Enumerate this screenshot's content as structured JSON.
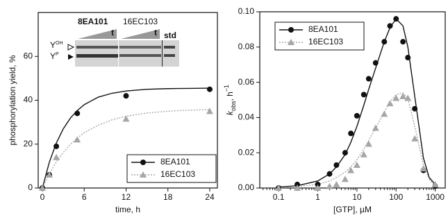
{
  "chart_data": [
    {
      "type": "scatter",
      "xlabel": "time, h",
      "ylabel": "phosphorylation yield, %",
      "xlim": [
        -0.6,
        25.1
      ],
      "xticks": [
        0,
        6,
        12,
        18,
        24
      ],
      "ylim": [
        0,
        80
      ],
      "yticks": [
        0,
        20,
        40,
        60
      ],
      "legend": "lower right",
      "x": [
        0,
        1,
        2,
        5,
        12,
        24
      ],
      "series": [
        {
          "name": "8EA101",
          "color": "#111111",
          "marker": "circle",
          "linestyle": "solid",
          "values": [
            0,
            6,
            19,
            34,
            42,
            45
          ],
          "fit": {
            "x": [
              0,
              1,
              2,
              3,
              4,
              5,
              6,
              8,
              10,
              12,
              15,
              18,
              21,
              24
            ],
            "y": [
              0,
              11.8,
              20.5,
              27.0,
              31.8,
              35.3,
              38.0,
              41.4,
              43.2,
              44.2,
              45.0,
              45.3,
              45.4,
              45.5
            ]
          }
        },
        {
          "name": "16EC103",
          "color": "#a6a6a6",
          "marker": "triangle",
          "linestyle": "dotted",
          "values": [
            0,
            6,
            14,
            22,
            31.5,
            35
          ],
          "fit": {
            "x": [
              0,
              1,
              2,
              3,
              4,
              5,
              6,
              8,
              10,
              12,
              15,
              18,
              21,
              24
            ],
            "y": [
              0,
              6.5,
              11.9,
              16.2,
              19.8,
              22.8,
              25.2,
              28.6,
              31.1,
              32.7,
              34.2,
              35.0,
              35.5,
              35.7
            ]
          }
        }
      ],
      "inset": {
        "label_1": "8EA101",
        "label_2": "16EC103",
        "t_1": "t",
        "t_2": "t",
        "std": "std",
        "band_1": {
          "main": "Y",
          "sup": "OH"
        },
        "band_2": {
          "main": "Y",
          "sup": "P"
        }
      }
    },
    {
      "type": "scatter",
      "xscale": "log",
      "xlabel": "[GTP], µM",
      "ylabel": {
        "main": "k",
        "sub": "obs",
        "rest": ", h",
        "sup": "−1"
      },
      "xlim": [
        0.033,
        1800
      ],
      "xticks": [
        0.1,
        1,
        10,
        100,
        1000
      ],
      "ylim": [
        0,
        0.1
      ],
      "yticks": [
        {
          "value": 0,
          "label": "0.00"
        },
        {
          "value": 0.02,
          "label": "0.02"
        },
        {
          "value": 0.04,
          "label": "0.04"
        },
        {
          "value": 0.06,
          "label": "0.06"
        },
        {
          "value": 0.08,
          "label": "0.08"
        },
        {
          "value": 0.1,
          "label": "0.10"
        }
      ],
      "legend": "upper left",
      "x": [
        0.1,
        0.3,
        1,
        2,
        3,
        5,
        7,
        10,
        15,
        20,
        30,
        50,
        70,
        100,
        150,
        200,
        300,
        500,
        1000
      ],
      "series": [
        {
          "name": "8EA101",
          "color": "#111111",
          "marker": "circle",
          "linestyle": "solid",
          "values": [
            0.0,
            0.002,
            0.002,
            0.008,
            0.013,
            0.02,
            0.031,
            0.041,
            0.053,
            0.062,
            0.071,
            0.083,
            0.092,
            0.096,
            0.083,
            0.074,
            0.045,
            0.01,
            0.001
          ],
          "fit": {
            "x": [
              0.1,
              0.3,
              1,
              2,
              3,
              5,
              7,
              10,
              15,
              20,
              30,
              50,
              70,
              100,
              150,
              200,
              300,
              500,
              700,
              1000
            ],
            "y": [
              0.0005,
              0.0013,
              0.004,
              0.008,
              0.012,
              0.019,
              0.026,
              0.035,
              0.047,
              0.056,
              0.068,
              0.083,
              0.091,
              0.096,
              0.092,
              0.08,
              0.052,
              0.017,
              0.006,
              0.002
            ]
          }
        },
        {
          "name": "16EC103",
          "color": "#a6a6a6",
          "marker": "triangle",
          "linestyle": "dotted",
          "values": [
            0.0,
            0.0,
            0.0,
            0.001,
            0.002,
            0.005,
            0.01,
            0.013,
            0.019,
            0.025,
            0.034,
            0.042,
            0.048,
            0.051,
            0.052,
            0.051,
            0.028,
            0.011,
            0.002
          ],
          "fit": {
            "x": [
              0.1,
              0.3,
              1,
              2,
              3,
              5,
              7,
              10,
              15,
              20,
              30,
              50,
              70,
              100,
              150,
              200,
              300,
              500,
              700,
              1000
            ],
            "y": [
              0,
              0.001,
              0.002,
              0.004,
              0.006,
              0.009,
              0.012,
              0.016,
              0.022,
              0.027,
              0.034,
              0.043,
              0.049,
              0.053,
              0.054,
              0.051,
              0.035,
              0.013,
              0.005,
              0.001
            ]
          }
        }
      ]
    }
  ]
}
